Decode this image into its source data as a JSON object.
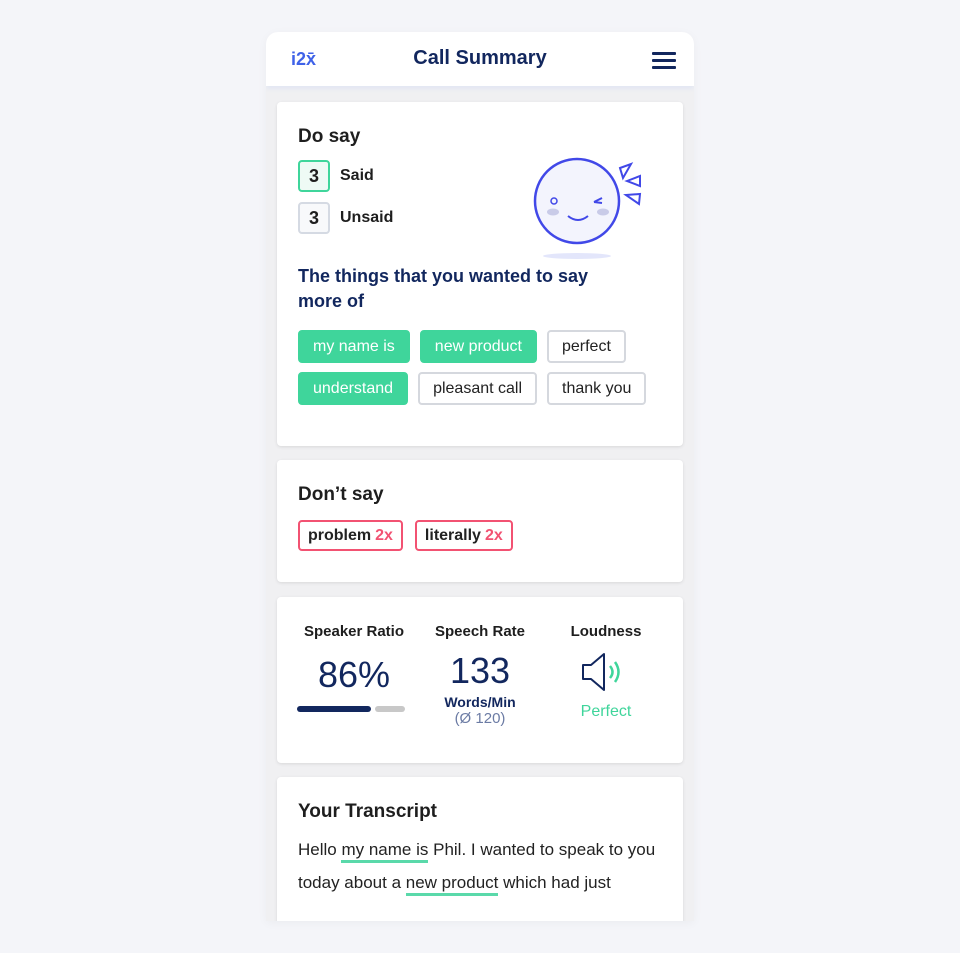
{
  "header": {
    "logo": "i2x̄",
    "title": "Call Summary",
    "menu_icon": "hamburger-icon"
  },
  "do_say": {
    "title": "Do say",
    "said_count": "3",
    "said_label": "Said",
    "unsaid_count": "3",
    "unsaid_label": "Unsaid",
    "subtitle": "The things that you wanted to say more of",
    "phrases": [
      {
        "text": "my name is",
        "said": true
      },
      {
        "text": "new product",
        "said": true
      },
      {
        "text": "perfect",
        "said": false
      },
      {
        "text": "understand",
        "said": true
      },
      {
        "text": "pleasant call",
        "said": false
      },
      {
        "text": "thank you",
        "said": false
      }
    ]
  },
  "dont_say": {
    "title": "Don’t say",
    "phrases": [
      {
        "text": "problem",
        "count": "2x"
      },
      {
        "text": "literally",
        "count": "2x"
      }
    ]
  },
  "stats": {
    "speaker_ratio": {
      "label": "Speaker Ratio",
      "value": "86%",
      "fraction": 0.86
    },
    "speech_rate": {
      "label": "Speech Rate",
      "value": "133",
      "unit": "Words/Min",
      "average": "(Ø 120)"
    },
    "loudness": {
      "label": "Loudness",
      "status": "Perfect"
    }
  },
  "transcript": {
    "title": "Your Transcript",
    "parts": [
      "Hello ",
      "my name is",
      " Phil. I wanted to speak to you today about a ",
      "new product",
      " which had just"
    ]
  },
  "colors": {
    "accent": "#3fd59b",
    "navy": "#12275e",
    "danger": "#f25272",
    "brand": "#3f62e8"
  }
}
